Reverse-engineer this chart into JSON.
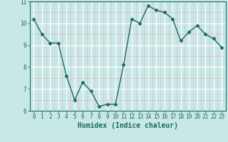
{
  "xlabel": "Humidex (Indice chaleur)",
  "x": [
    0,
    1,
    2,
    3,
    4,
    5,
    6,
    7,
    8,
    9,
    10,
    11,
    12,
    13,
    14,
    15,
    16,
    17,
    18,
    19,
    20,
    21,
    22,
    23
  ],
  "y": [
    10.2,
    9.5,
    9.1,
    9.1,
    7.6,
    6.5,
    7.3,
    6.9,
    6.2,
    6.3,
    6.3,
    8.1,
    10.2,
    10.0,
    10.8,
    10.6,
    10.5,
    10.2,
    9.2,
    9.6,
    9.9,
    9.5,
    9.3,
    8.9
  ],
  "line_color": "#1a6b5a",
  "marker": "D",
  "markersize": 2.5,
  "linewidth": 1.0,
  "bg_color": "#c8e8e8",
  "grid_major_color": "#ffffff",
  "grid_minor_color": "#e8b8b8",
  "ylim": [
    6,
    11
  ],
  "xlim": [
    -0.5,
    23.5
  ],
  "yticks": [
    6,
    7,
    8,
    9,
    10,
    11
  ],
  "xticks": [
    0,
    1,
    2,
    3,
    4,
    5,
    6,
    7,
    8,
    9,
    10,
    11,
    12,
    13,
    14,
    15,
    16,
    17,
    18,
    19,
    20,
    21,
    22,
    23
  ],
  "tick_color": "#1a6b5a",
  "label_color": "#1a6b5a",
  "tick_fontsize": 5.5,
  "xlabel_fontsize": 7.0,
  "xlabel_fontweight": "bold"
}
